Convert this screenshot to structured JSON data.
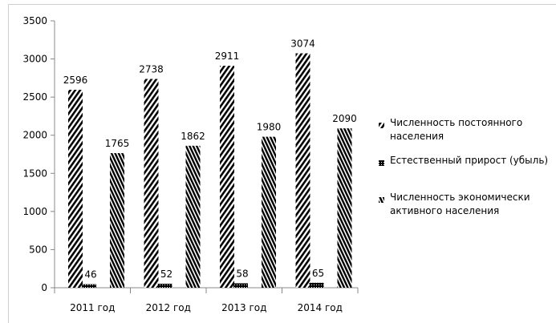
{
  "chart_data": {
    "type": "bar",
    "categories": [
      "2011 год",
      "2012 год",
      "2013 год",
      "2014 год"
    ],
    "series": [
      {
        "name": "Численность постоянного населения",
        "color": "#000000",
        "values": [
          2596,
          2738,
          2911,
          3074
        ]
      },
      {
        "name": "Естественный прирост (убыль)",
        "color": "#000000",
        "values": [
          46,
          52,
          58,
          65
        ]
      },
      {
        "name": "Численность   экономически активного  населения",
        "color": "#000000",
        "values": [
          1765,
          1862,
          1980,
          2090
        ]
      }
    ],
    "ylim": [
      0,
      3500
    ],
    "yticks": [
      0,
      500,
      1000,
      1500,
      2000,
      2500,
      3000,
      3500
    ],
    "grid": false,
    "legend": "right"
  }
}
